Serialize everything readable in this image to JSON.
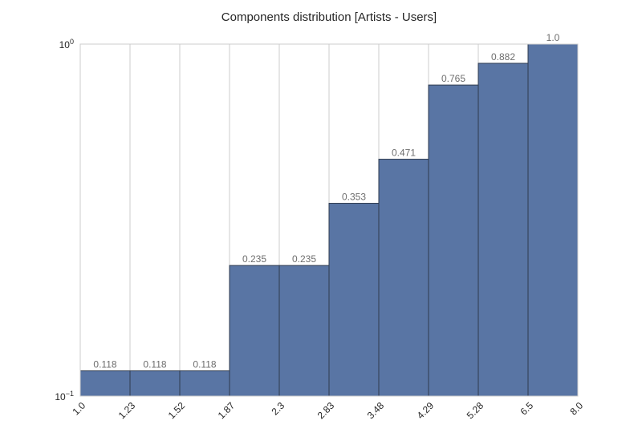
{
  "chart_data": {
    "type": "bar",
    "title": "Components distribution [Artists - Users]",
    "x_tick_labels": [
      "1.0",
      "1.23",
      "1.52",
      "1.87",
      "2.3",
      "2.83",
      "3.48",
      "4.29",
      "5.28",
      "6.5",
      "8.0"
    ],
    "values": [
      0.118,
      0.118,
      0.118,
      0.235,
      0.235,
      0.353,
      0.471,
      0.765,
      0.882,
      1.0
    ],
    "value_labels": [
      "0.118",
      "0.118",
      "0.118",
      "0.235",
      "0.235",
      "0.353",
      "0.471",
      "0.765",
      "0.882",
      "1.0"
    ],
    "y_scale": "log",
    "ylim": [
      0.1,
      1.0
    ],
    "y_ticks": [
      {
        "base": "10",
        "exp": "0",
        "value": 1.0
      },
      {
        "base": "10",
        "exp": "−1",
        "value": 0.1
      }
    ],
    "grid": "vertical",
    "bar_color": "#5975a4",
    "bar_edge_color": "#2e3a4e",
    "grid_color": "#cccccc"
  }
}
